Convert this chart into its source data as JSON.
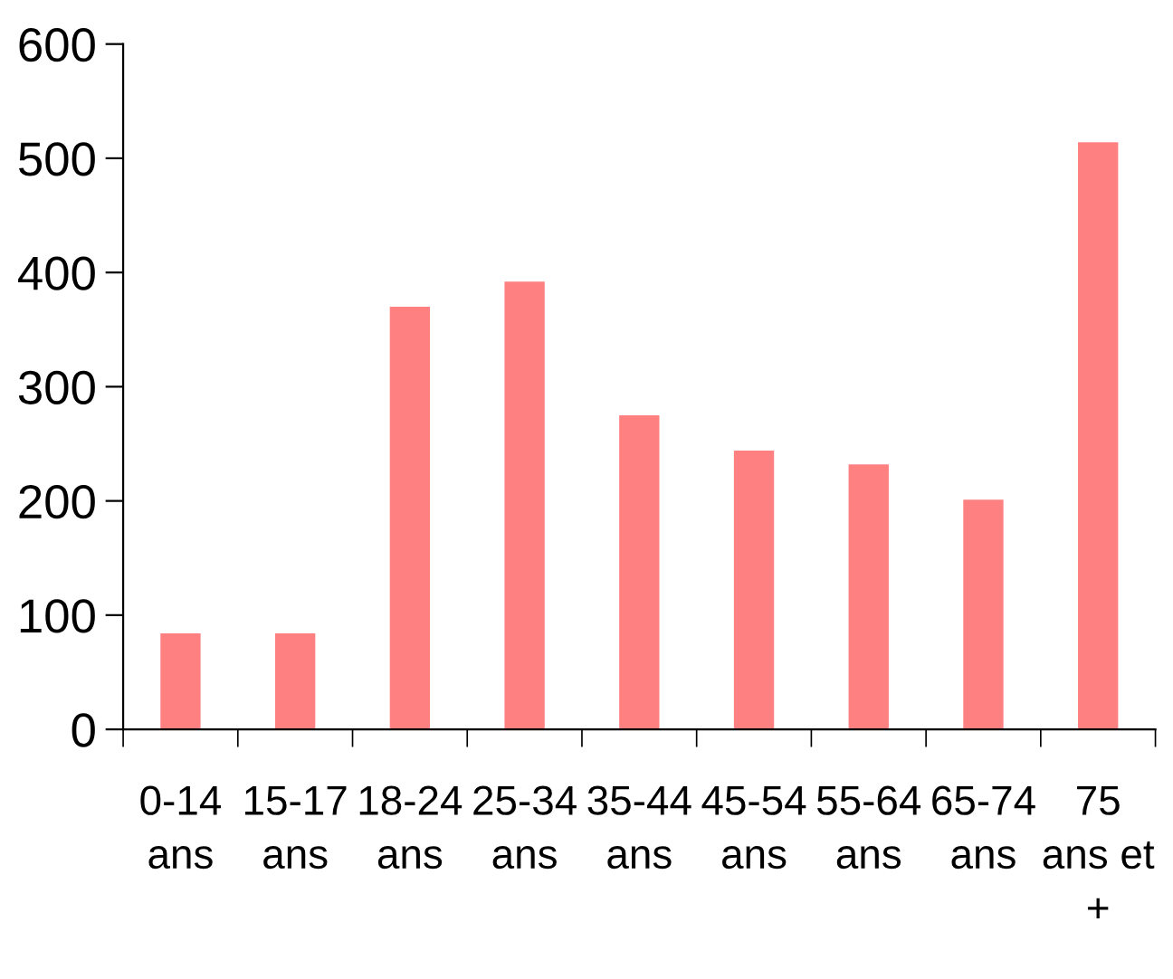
{
  "chart_data": {
    "type": "bar",
    "categories": [
      "0-14\nans",
      "15-17\nans",
      "18-24\nans",
      "25-34\nans",
      "35-44\nans",
      "45-54\nans",
      "55-64\nans",
      "65-74\nans",
      "75\nans et\n+"
    ],
    "values": [
      84,
      84,
      370,
      392,
      275,
      244,
      232,
      201,
      514
    ],
    "color": "#ff8080",
    "ylim": [
      0,
      600
    ],
    "yticks": [
      0,
      100,
      200,
      300,
      400,
      500,
      600
    ],
    "grid": false,
    "legend": false
  }
}
